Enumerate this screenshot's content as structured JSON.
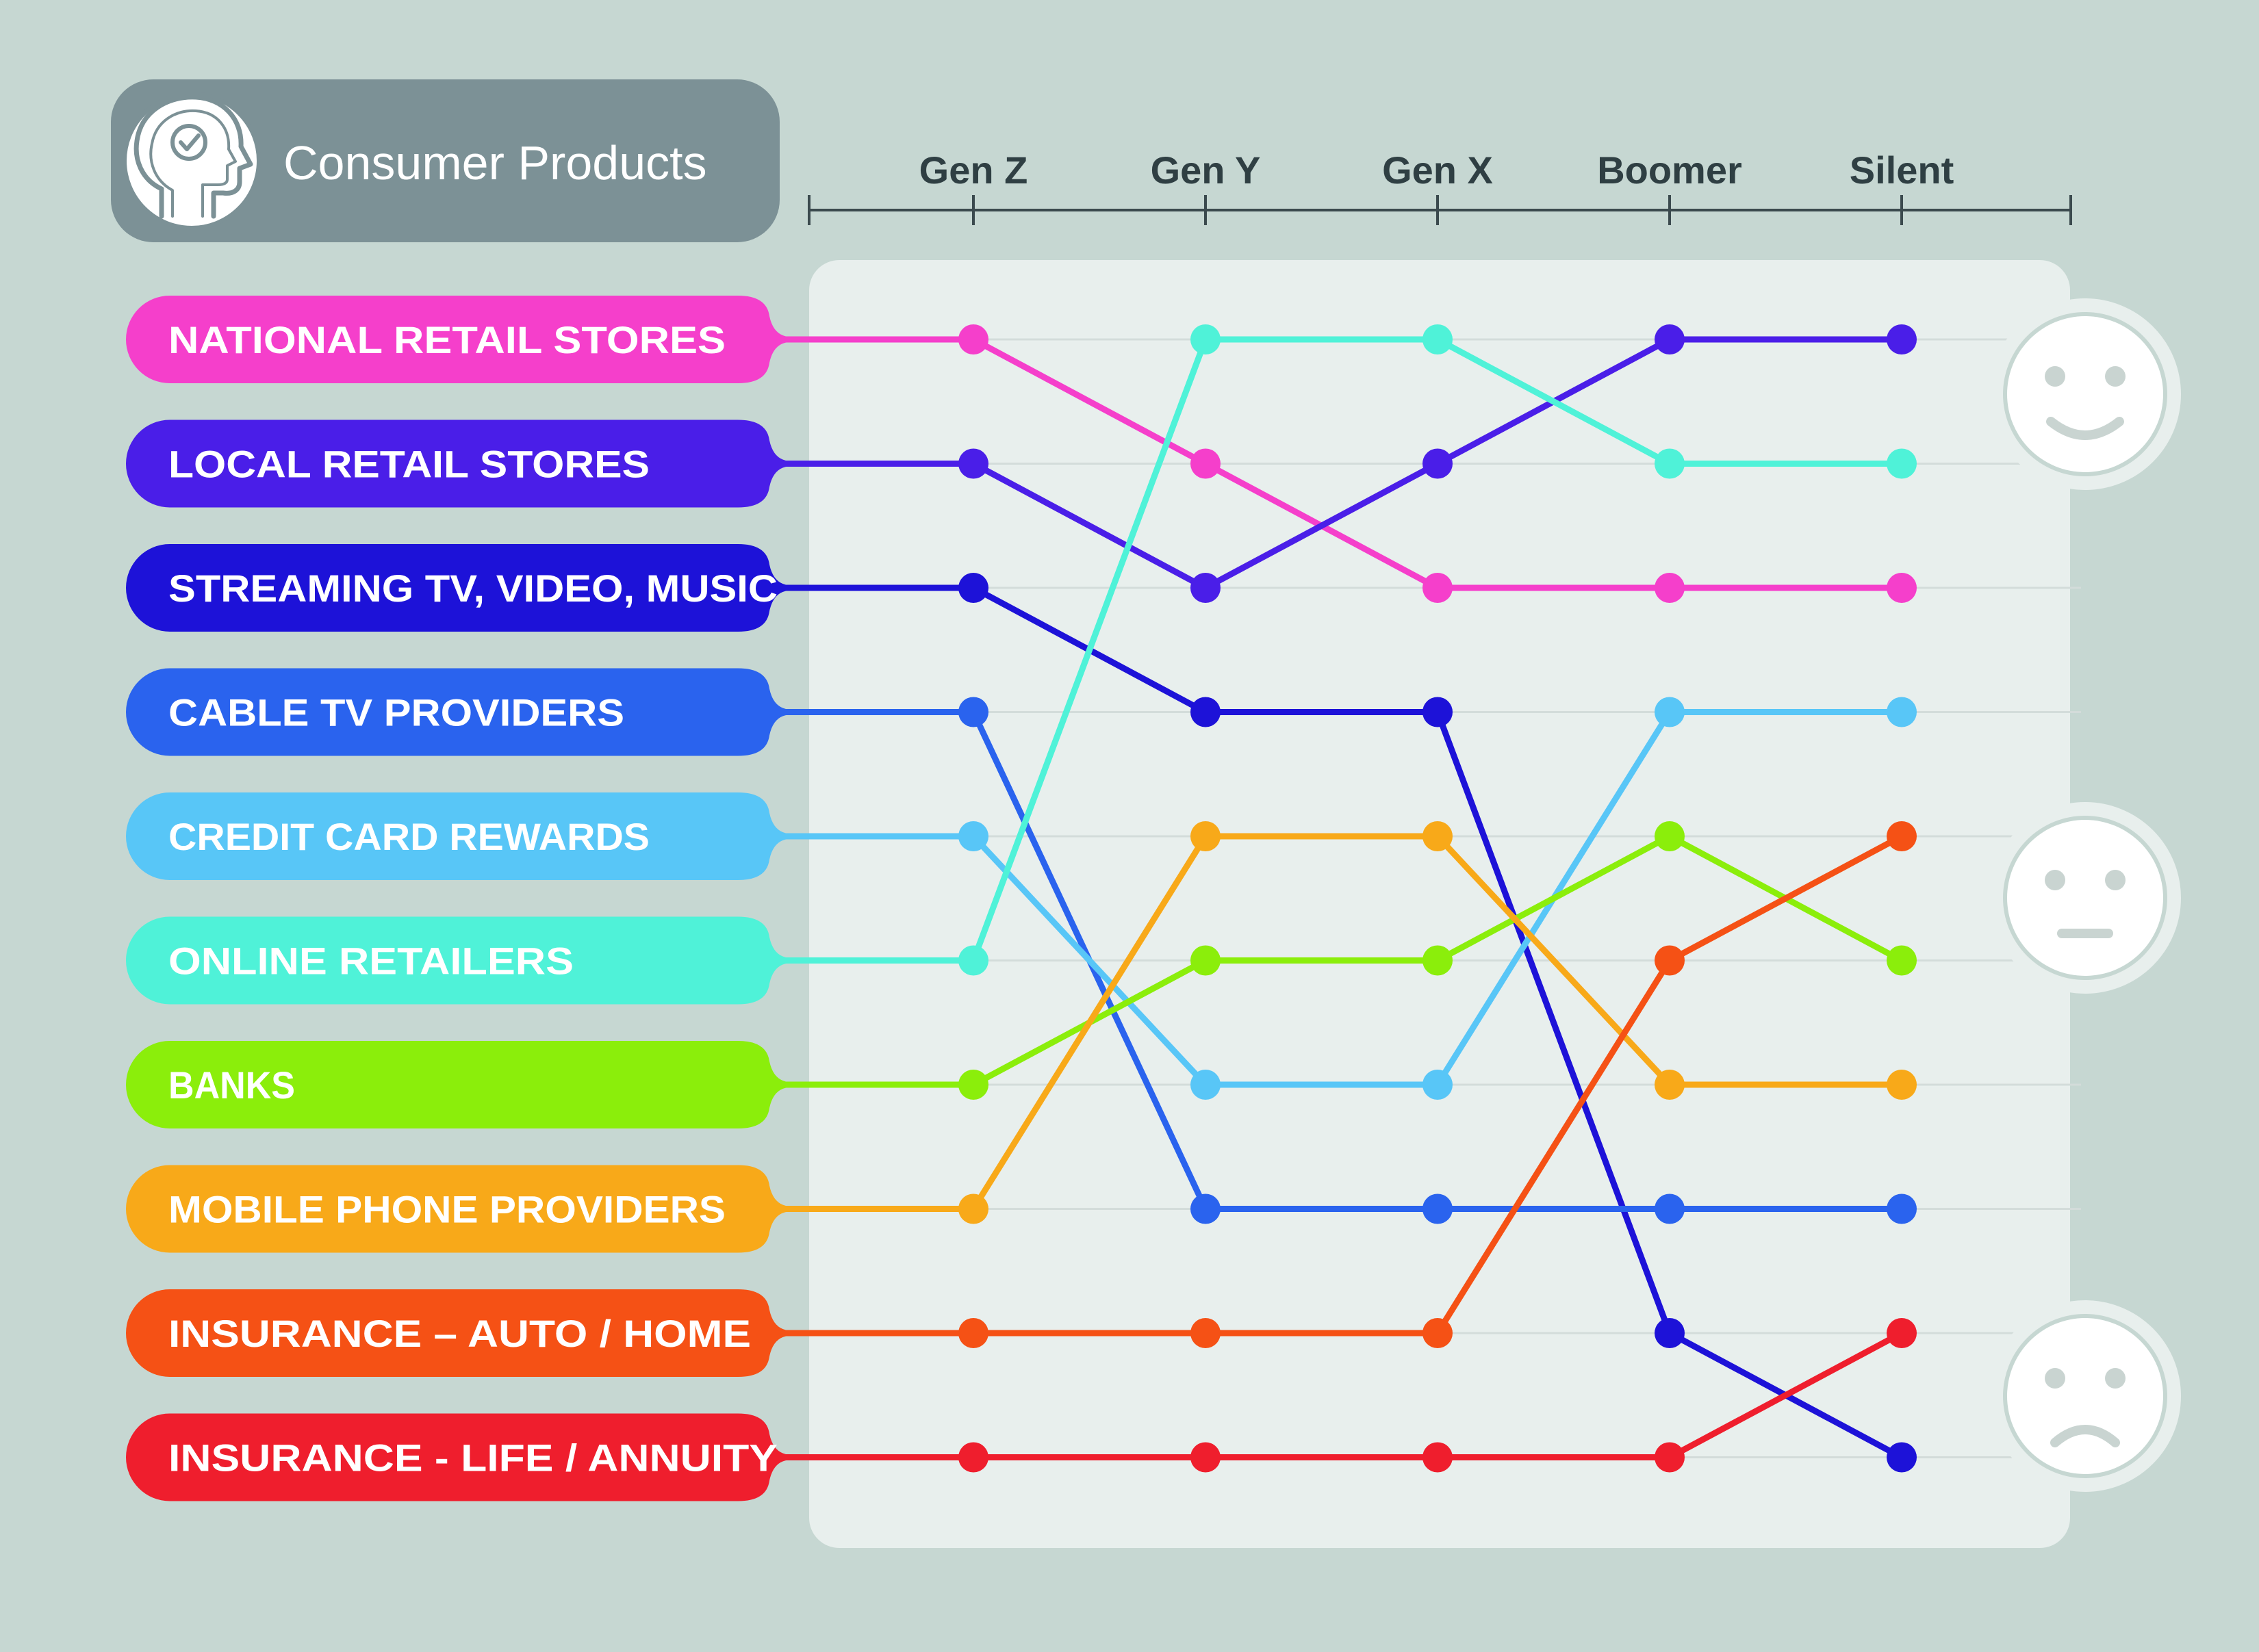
{
  "header": {
    "title": "Consumer Products",
    "icon": "head-checkmark-icon"
  },
  "chart_data": {
    "type": "line",
    "title": "Consumer Products",
    "x": [
      "Gen Z",
      "Gen Y",
      "Gen X",
      "Boomer",
      "Silent"
    ],
    "y_scale": "rank",
    "y_range": [
      1,
      10
    ],
    "y_direction": "rank 1 at top",
    "grid": true,
    "legend_placement": "left",
    "series": [
      {
        "name": "NATIONAL RETAIL STORES",
        "color": "#f53fcb",
        "ranks": [
          1,
          2,
          3,
          3,
          3
        ]
      },
      {
        "name": "LOCAL RETAIL STORES",
        "color": "#4a1ee8",
        "ranks": [
          2,
          3,
          2,
          1,
          1
        ]
      },
      {
        "name": "STREAMING TV, VIDEO, MUSIC",
        "color": "#1d12d8",
        "ranks": [
          3,
          4,
          4,
          9,
          10
        ]
      },
      {
        "name": "CABLE TV PROVIDERS",
        "color": "#2a63ee",
        "ranks": [
          4,
          8,
          8,
          8,
          8
        ]
      },
      {
        "name": "CREDIT CARD REWARDS",
        "color": "#58c6f7",
        "ranks": [
          5,
          7,
          7,
          4,
          4
        ]
      },
      {
        "name": "ONLINE RETAILERS",
        "color": "#4ff2d8",
        "ranks": [
          6,
          1,
          1,
          2,
          2
        ]
      },
      {
        "name": "BANKS",
        "color": "#8bee0b",
        "ranks": [
          7,
          6,
          6,
          5,
          6
        ]
      },
      {
        "name": "MOBILE PHONE PROVIDERS",
        "color": "#f8a919",
        "ranks": [
          8,
          5,
          5,
          7,
          7
        ]
      },
      {
        "name": "INSURANCE – AUTO / HOME",
        "color": "#f55115",
        "ranks": [
          9,
          9,
          9,
          6,
          5
        ]
      },
      {
        "name": "INSURANCE - LIFE / ANNUITY",
        "color": "#ef1e2d",
        "ranks": [
          10,
          10,
          10,
          10,
          9
        ]
      }
    ],
    "sentiment_icons": [
      "smiling-face-icon",
      "neutral-face-icon",
      "frowning-face-icon"
    ]
  }
}
